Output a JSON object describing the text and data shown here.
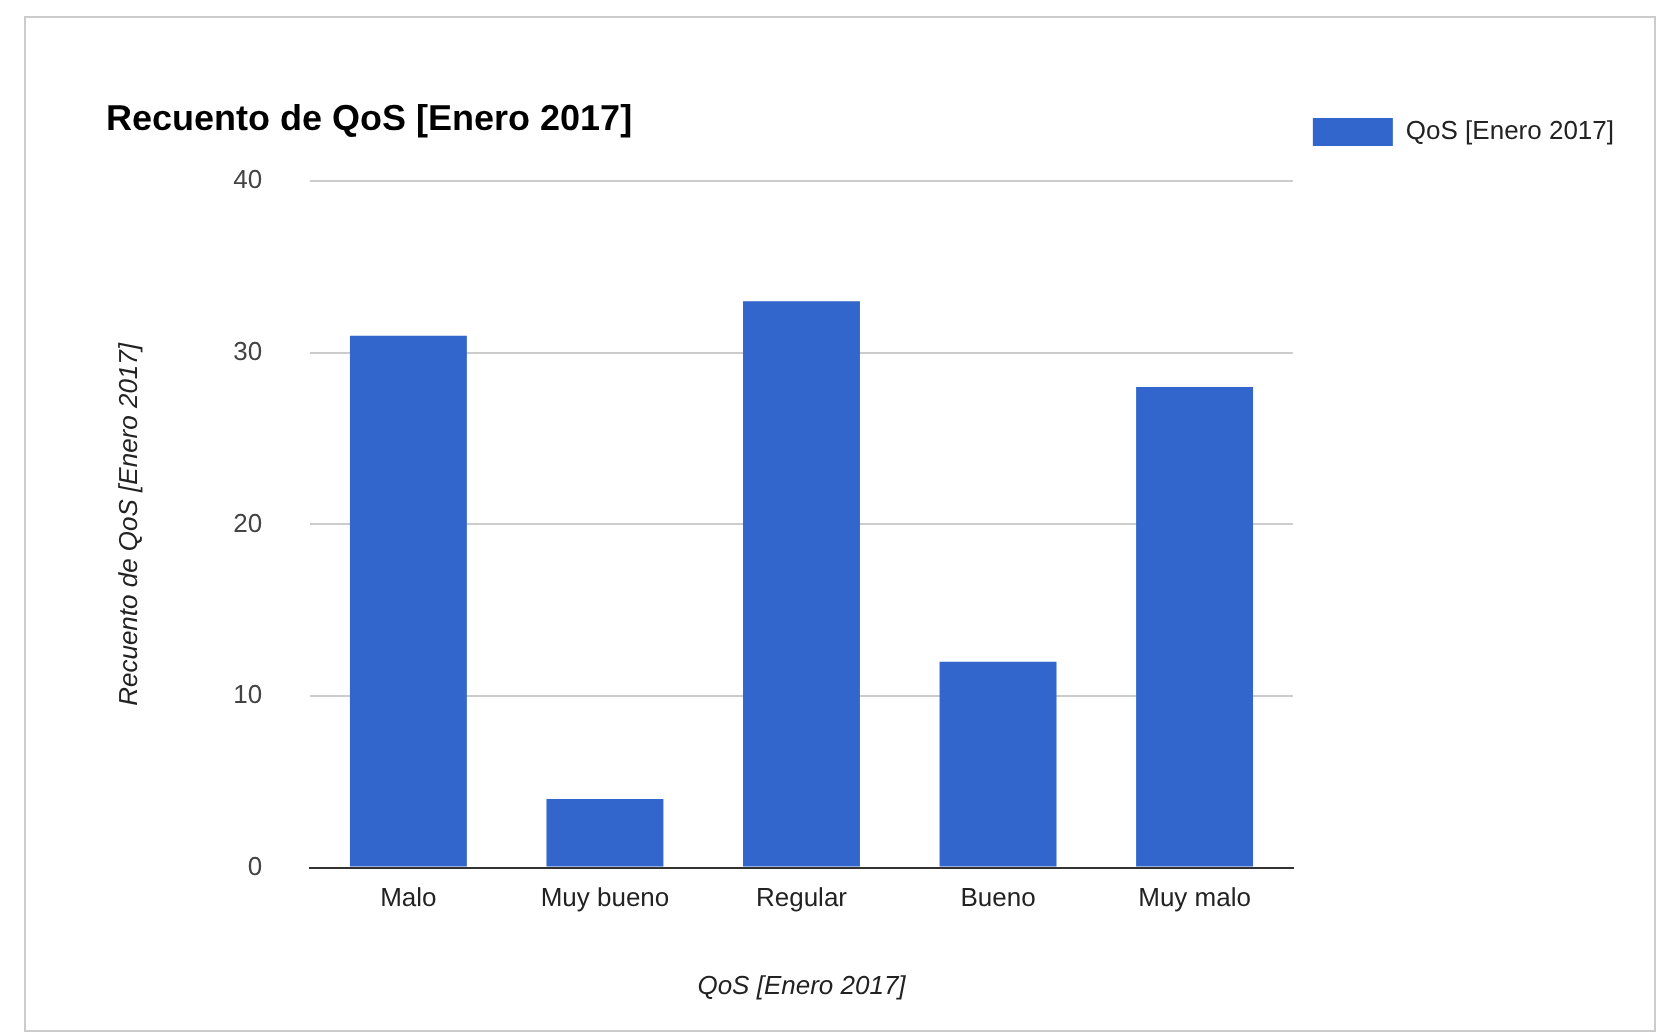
{
  "chart_data": {
    "type": "bar",
    "title": "Recuento de QoS [Enero 2017]",
    "xlabel": "QoS [Enero 2017]",
    "ylabel": "Recuento de QoS [Enero 2017]",
    "categories": [
      "Malo",
      "Muy bueno",
      "Regular",
      "Bueno",
      "Muy malo"
    ],
    "series": [
      {
        "name": "QoS [Enero 2017]",
        "color": "#3366cc",
        "values": [
          31,
          4,
          33,
          12,
          28
        ]
      }
    ],
    "ylim": [
      0,
      40
    ],
    "yticks": [
      0,
      10,
      20,
      30,
      40
    ],
    "grid": "y",
    "legend": "top right"
  }
}
